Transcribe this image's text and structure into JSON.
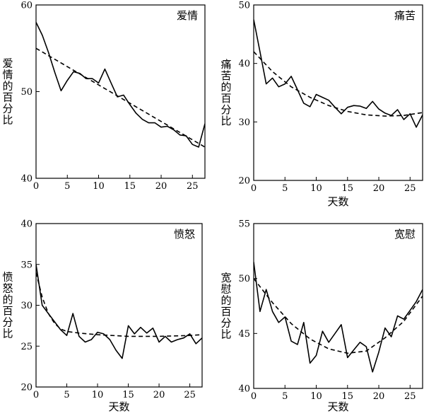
{
  "chart_data": [
    {
      "type": "line",
      "title": "爱情",
      "xlabel": "",
      "ylabel": "爱情的百分比",
      "xlim": [
        0,
        27
      ],
      "ylim": [
        40,
        60
      ],
      "xticks": [
        "0",
        "5",
        "10",
        "15",
        "20",
        "25"
      ],
      "yticks": [
        "40",
        "50",
        "60"
      ],
      "series": [
        {
          "style": "solid",
          "x": [
            0,
            1,
            2,
            3,
            4,
            5,
            6,
            7,
            8,
            9,
            10,
            11,
            12,
            13,
            14,
            15,
            16,
            17,
            18,
            19,
            20,
            21,
            22,
            23,
            24,
            25,
            26,
            27
          ],
          "y": [
            58,
            56.5,
            54.5,
            52.2,
            50.1,
            51.3,
            52.3,
            52.1,
            51.5,
            51.5,
            51.0,
            52.6,
            51.0,
            49.4,
            49.6,
            48.5,
            47.5,
            46.8,
            46.4,
            46.4,
            45.9,
            46.0,
            45.6,
            45.0,
            44.9,
            43.9,
            43.6,
            46.3
          ]
        },
        {
          "style": "dashed",
          "x": [
            0,
            27
          ],
          "y": [
            55.0,
            43.6
          ]
        }
      ]
    },
    {
      "type": "line",
      "title": "痛苦",
      "xlabel": "天数",
      "ylabel": "痛苦的百分比",
      "xlim": [
        0,
        27
      ],
      "ylim": [
        20,
        50
      ],
      "xticks": [
        "0",
        "5",
        "10",
        "15",
        "20",
        "25"
      ],
      "yticks": [
        "20",
        "30",
        "40",
        "50"
      ],
      "series": [
        {
          "style": "solid",
          "x": [
            0,
            1,
            2,
            3,
            4,
            5,
            6,
            7,
            8,
            9,
            10,
            11,
            12,
            13,
            14,
            15,
            16,
            17,
            18,
            19,
            20,
            21,
            22,
            23,
            24,
            25,
            26,
            27
          ],
          "y": [
            47.5,
            42.0,
            36.5,
            37.5,
            36.0,
            36.5,
            37.8,
            35.5,
            33.2,
            32.6,
            34.7,
            34.2,
            33.7,
            32.5,
            31.4,
            32.5,
            32.8,
            32.7,
            32.3,
            33.5,
            32.2,
            31.5,
            31.1,
            32.1,
            30.4,
            31.4,
            29.1,
            31.2
          ]
        },
        {
          "style": "dashed",
          "x": [
            0,
            3,
            6,
            9,
            12,
            15,
            18,
            21,
            24,
            27
          ],
          "y": [
            42.0,
            38.6,
            36.0,
            34.2,
            32.8,
            31.8,
            31.2,
            31.0,
            31.1,
            31.6
          ]
        }
      ]
    },
    {
      "type": "line",
      "title": "愤怒",
      "xlabel": "天数",
      "ylabel": "愤怒的百分比",
      "xlim": [
        0,
        27
      ],
      "ylim": [
        20,
        40
      ],
      "xticks": [
        "0",
        "5",
        "10",
        "15",
        "20",
        "25"
      ],
      "yticks": [
        "20",
        "25",
        "30",
        "35",
        "40"
      ],
      "series": [
        {
          "style": "solid",
          "x": [
            0,
            1,
            2,
            3,
            4,
            5,
            6,
            7,
            8,
            9,
            10,
            11,
            12,
            13,
            14,
            15,
            16,
            17,
            18,
            19,
            20,
            21,
            22,
            23,
            24,
            25,
            26,
            27
          ],
          "y": [
            35.0,
            30.0,
            29.0,
            28.0,
            27.0,
            26.3,
            29.0,
            26.2,
            25.5,
            25.8,
            26.7,
            26.5,
            25.8,
            24.5,
            23.5,
            27.5,
            26.5,
            27.3,
            26.6,
            27.2,
            25.5,
            26.2,
            25.5,
            25.8,
            26.0,
            26.5,
            25.3,
            26.0
          ]
        },
        {
          "style": "dashed",
          "x": [
            0,
            1,
            2,
            3,
            4,
            5,
            7,
            10,
            15,
            20,
            25,
            27
          ],
          "y": [
            34.0,
            31.0,
            29.0,
            27.8,
            27.1,
            26.8,
            26.6,
            26.4,
            26.2,
            26.2,
            26.3,
            26.4
          ]
        }
      ]
    },
    {
      "type": "line",
      "title": "宽慰",
      "xlabel": "天数",
      "ylabel": "宽慰的百分比",
      "xlim": [
        0,
        27
      ],
      "ylim": [
        40,
        55
      ],
      "xticks": [
        "0",
        "5",
        "10",
        "15",
        "20",
        "25"
      ],
      "yticks": [
        "40",
        "45",
        "50",
        "55"
      ],
      "series": [
        {
          "style": "solid",
          "x": [
            0,
            1,
            2,
            3,
            4,
            5,
            6,
            7,
            8,
            9,
            10,
            11,
            12,
            13,
            14,
            15,
            16,
            17,
            18,
            19,
            20,
            21,
            22,
            23,
            24,
            25,
            26,
            27
          ],
          "y": [
            51.5,
            47.0,
            49.0,
            47.0,
            46.0,
            46.5,
            44.3,
            44.0,
            46.0,
            42.3,
            43.0,
            45.2,
            44.2,
            45.0,
            45.8,
            42.8,
            43.5,
            44.2,
            43.8,
            41.5,
            43.3,
            45.5,
            44.7,
            46.6,
            46.3,
            47.1,
            47.9,
            49.0
          ]
        },
        {
          "style": "dashed",
          "x": [
            0,
            3,
            6,
            9,
            12,
            15,
            18,
            21,
            24,
            27
          ],
          "y": [
            50.0,
            47.8,
            45.9,
            44.5,
            43.6,
            43.2,
            43.4,
            44.6,
            46.1,
            48.4
          ]
        }
      ]
    }
  ]
}
